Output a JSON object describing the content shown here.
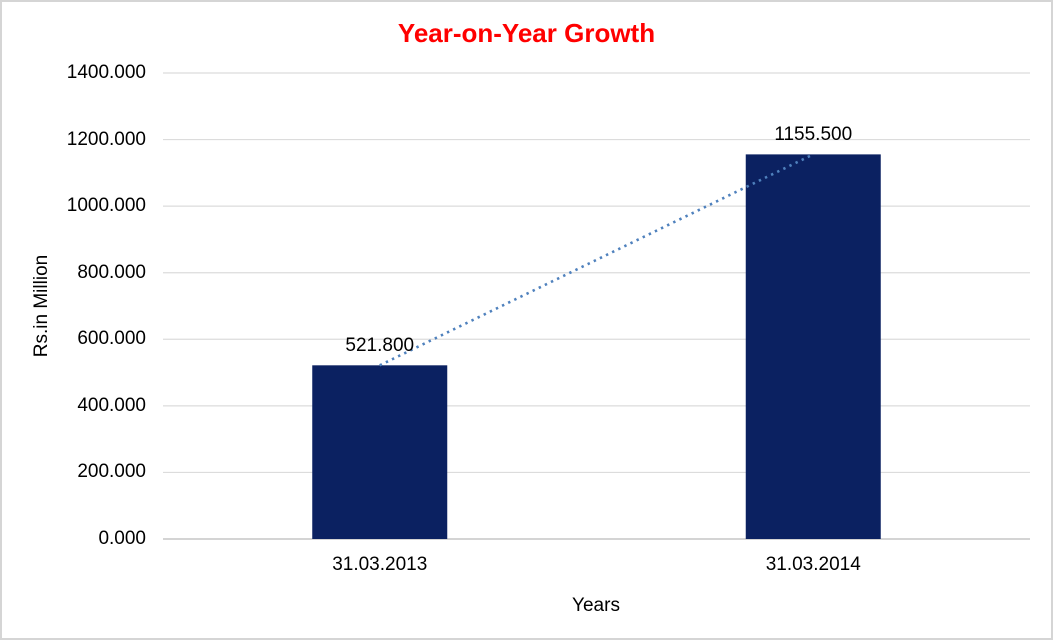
{
  "chart_data": {
    "type": "bar",
    "title": "Year-on-Year Growth",
    "xlabel": "Years",
    "ylabel": "Rs.in Million",
    "categories": [
      "31.03.2013",
      "31.03.2014"
    ],
    "values": [
      521.8,
      1155.5
    ],
    "value_labels": [
      "521.800",
      "1155.500"
    ],
    "ylim": [
      0,
      1400
    ],
    "ytick_step": 200,
    "yticks": [
      {
        "value": 0,
        "label": "0.000"
      },
      {
        "value": 200,
        "label": "200.000"
      },
      {
        "value": 400,
        "label": "400.000"
      },
      {
        "value": 600,
        "label": "600.000"
      },
      {
        "value": 800,
        "label": "800.000"
      },
      {
        "value": 1000,
        "label": "1000.000"
      },
      {
        "value": 1200,
        "label": "1200.000"
      },
      {
        "value": 1400,
        "label": "1400.000"
      }
    ],
    "grid": true,
    "legend": false,
    "trendline": {
      "style": "dotted",
      "from": "31.03.2013",
      "to": "31.03.2014"
    },
    "colors": {
      "bar": "#0b2161",
      "title": "#ff0000",
      "trendline": "#4f81bd",
      "gridline": "#dcdcdc",
      "axis_line": "#c6c6c6",
      "text": "#000000",
      "frame_border": "#d5d5d5"
    }
  }
}
